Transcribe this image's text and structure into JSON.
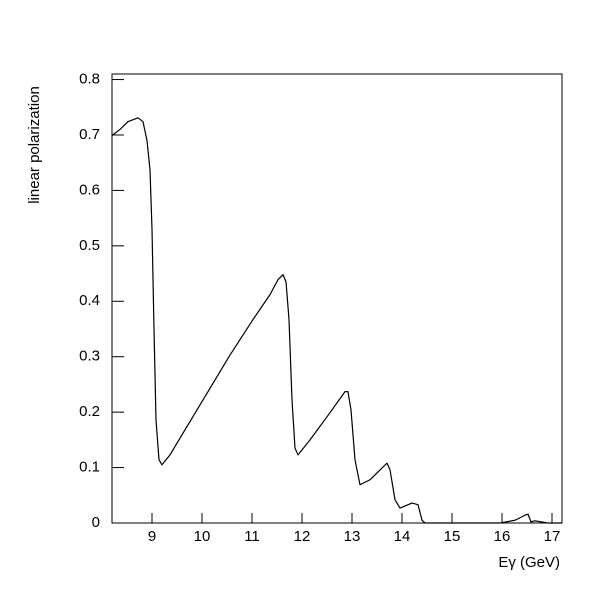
{
  "chart_data": {
    "type": "line",
    "y_label": "linear polarization",
    "x_label": "Eγ (GeV)",
    "xlim": [
      8.2,
      17.2
    ],
    "ylim": [
      0,
      0.81
    ],
    "xticks": [
      9,
      10,
      11,
      12,
      13,
      14,
      15,
      16,
      17
    ],
    "yticks": [
      0,
      0.1,
      0.2,
      0.3,
      0.4,
      0.5,
      0.6,
      0.7,
      0.8
    ],
    "color": "#000000",
    "x": [
      8.2,
      8.36,
      8.52,
      8.72,
      8.82,
      8.9,
      8.96,
      9.0,
      9.04,
      9.08,
      9.14,
      9.2,
      9.36,
      9.66,
      10.02,
      10.56,
      11.02,
      11.36,
      11.52,
      11.62,
      11.68,
      11.74,
      11.8,
      11.86,
      11.92,
      12.16,
      12.56,
      12.86,
      12.92,
      12.98,
      13.06,
      13.16,
      13.36,
      13.7,
      13.76,
      13.86,
      13.96,
      14.2,
      14.32,
      14.4,
      14.46,
      15.96,
      16.26,
      16.46,
      16.52,
      16.58,
      16.66,
      16.92,
      17.2
    ],
    "values": [
      0.699,
      0.71,
      0.724,
      0.731,
      0.724,
      0.69,
      0.637,
      0.53,
      0.35,
      0.186,
      0.114,
      0.105,
      0.123,
      0.168,
      0.222,
      0.303,
      0.367,
      0.412,
      0.439,
      0.448,
      0.435,
      0.367,
      0.222,
      0.135,
      0.123,
      0.15,
      0.199,
      0.237,
      0.237,
      0.204,
      0.114,
      0.069,
      0.078,
      0.108,
      0.096,
      0.042,
      0.027,
      0.036,
      0.033,
      0.005,
      0,
      0,
      0.005,
      0.014,
      0.016,
      0.002,
      0.004,
      0,
      0
    ]
  }
}
